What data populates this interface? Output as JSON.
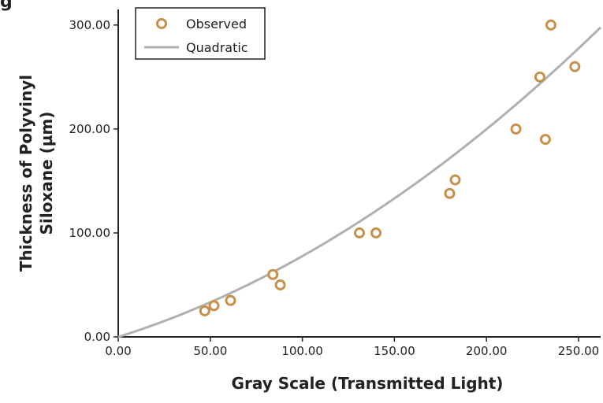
{
  "figure_label": "g",
  "chart_data": {
    "type": "scatter",
    "xlabel": "Gray Scale (Transmitted Light)",
    "ylabel_lines": [
      "Thickness of Polyvinyl",
      "Siloxane (µm)"
    ],
    "xlim": [
      0,
      262
    ],
    "ylim": [
      0,
      315
    ],
    "x_ticks": [
      0,
      50,
      100,
      150,
      200,
      250
    ],
    "x_tick_labels": [
      "0.00",
      "50.00",
      "100.00",
      "150.00",
      "200.00",
      "250.00"
    ],
    "y_ticks": [
      0,
      100,
      200,
      300
    ],
    "y_tick_labels": [
      "0.00",
      "100.00",
      "200.00",
      "300.00"
    ],
    "grid": false,
    "legend_position": "top-left",
    "series": [
      {
        "name": "Observed",
        "kind": "scatter",
        "color": "#c8914a",
        "points": [
          [
            47,
            25
          ],
          [
            52,
            30
          ],
          [
            61,
            35
          ],
          [
            84,
            60
          ],
          [
            88,
            50
          ],
          [
            131,
            100
          ],
          [
            140,
            100
          ],
          [
            180,
            138
          ],
          [
            183,
            151
          ],
          [
            216,
            200
          ],
          [
            229,
            250
          ],
          [
            232,
            190
          ],
          [
            235,
            300
          ],
          [
            248,
            260
          ]
        ]
      },
      {
        "name": "Quadratic",
        "kind": "curve",
        "color": "#b0b0b0",
        "x_start": 0,
        "x_end": 262,
        "coefficients": {
          "a": 0.00222,
          "b": 0.555,
          "c": 0
        }
      }
    ]
  }
}
